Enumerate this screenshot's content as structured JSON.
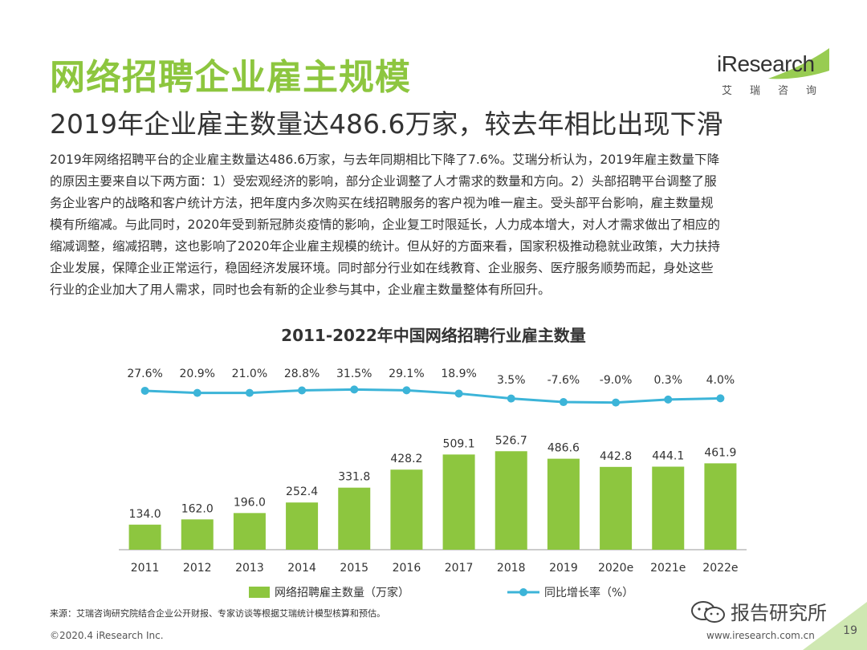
{
  "colors": {
    "accent": "#8dc63f",
    "bar": "#8dc63f",
    "line": "#3cb4d8",
    "corner": "#cfe8b2"
  },
  "header": {
    "title": "网络招聘企业雇主规模",
    "subtitle": "2019年企业雇主数量达486.6万家，较去年相比出现下滑"
  },
  "logo": {
    "name": "iResearch",
    "cn": "艾瑞咨询"
  },
  "body_lines": [
    "2019年网络招聘平台的企业雇主数量达486.6万家，与去年同期相比下降了7.6%。艾瑞分析认为，2019年雇主数量下降",
    "的原因主要来自以下两方面：1）受宏观经济的影响，部分企业调整了人才需求的数量和方向。2）头部招聘平台调整了服",
    "务企业客户的战略和客户统计方法，把年度内多次购买在线招聘服务的客户视为唯一雇主。受头部平台影响，雇主数量规",
    "模有所缩减。与此同时，2020年受到新冠肺炎疫情的影响，企业复工时限延长，人力成本增大，对人才需求做出了相应的",
    "缩减调整，缩减招聘，这也影响了2020年企业雇主规模的统计。但从好的方面来看，国家积极推动稳就业政策，大力扶持",
    "企业发展，保障企业正常运行，稳固经济发展环境。同时部分行业如在线教育、企业服务、医疗服务顺势而起，身处这些",
    "行业的企业加大了用人需求，同时也会有新的企业参与其中，企业雇主数量整体有所回升。"
  ],
  "chart_data": {
    "type": "bar",
    "title": "2011-2022年中国网络招聘行业雇主数量",
    "categories": [
      "2011",
      "2012",
      "2013",
      "2014",
      "2015",
      "2016",
      "2017",
      "2018",
      "2019",
      "2020e",
      "2021e",
      "2022e"
    ],
    "series": [
      {
        "name": "网络招聘雇主数量（万家）",
        "type": "bar",
        "values": [
          134.0,
          162.0,
          196.0,
          252.4,
          331.8,
          428.2,
          509.1,
          526.7,
          486.6,
          442.8,
          444.1,
          461.9
        ],
        "labels": [
          "134.0",
          "162.0",
          "196.0",
          "252.4",
          "331.8",
          "428.2",
          "509.1",
          "526.7",
          "486.6",
          "442.8",
          "444.1",
          "461.9"
        ]
      },
      {
        "name": "同比增长率（%）",
        "type": "line",
        "values": [
          27.6,
          20.9,
          21.0,
          28.8,
          31.5,
          29.1,
          18.9,
          3.5,
          -7.6,
          -9.0,
          0.3,
          4.0
        ],
        "labels": [
          "27.6%",
          "20.9%",
          "21.0%",
          "28.8%",
          "31.5%",
          "29.1%",
          "18.9%",
          "3.5%",
          "-7.6%",
          "-9.0%",
          "0.3%",
          "4.0%"
        ]
      }
    ],
    "legend": "bottom"
  },
  "footer": {
    "source": "来源：艾瑞咨询研究院结合企业公开财报、专家访谈等根据艾瑞统计模型核算和预估。",
    "copyright": "©2020.4 iResearch Inc.",
    "website": "www.iresearch.com.cn",
    "page": "19",
    "watermark": "报告研究所"
  }
}
